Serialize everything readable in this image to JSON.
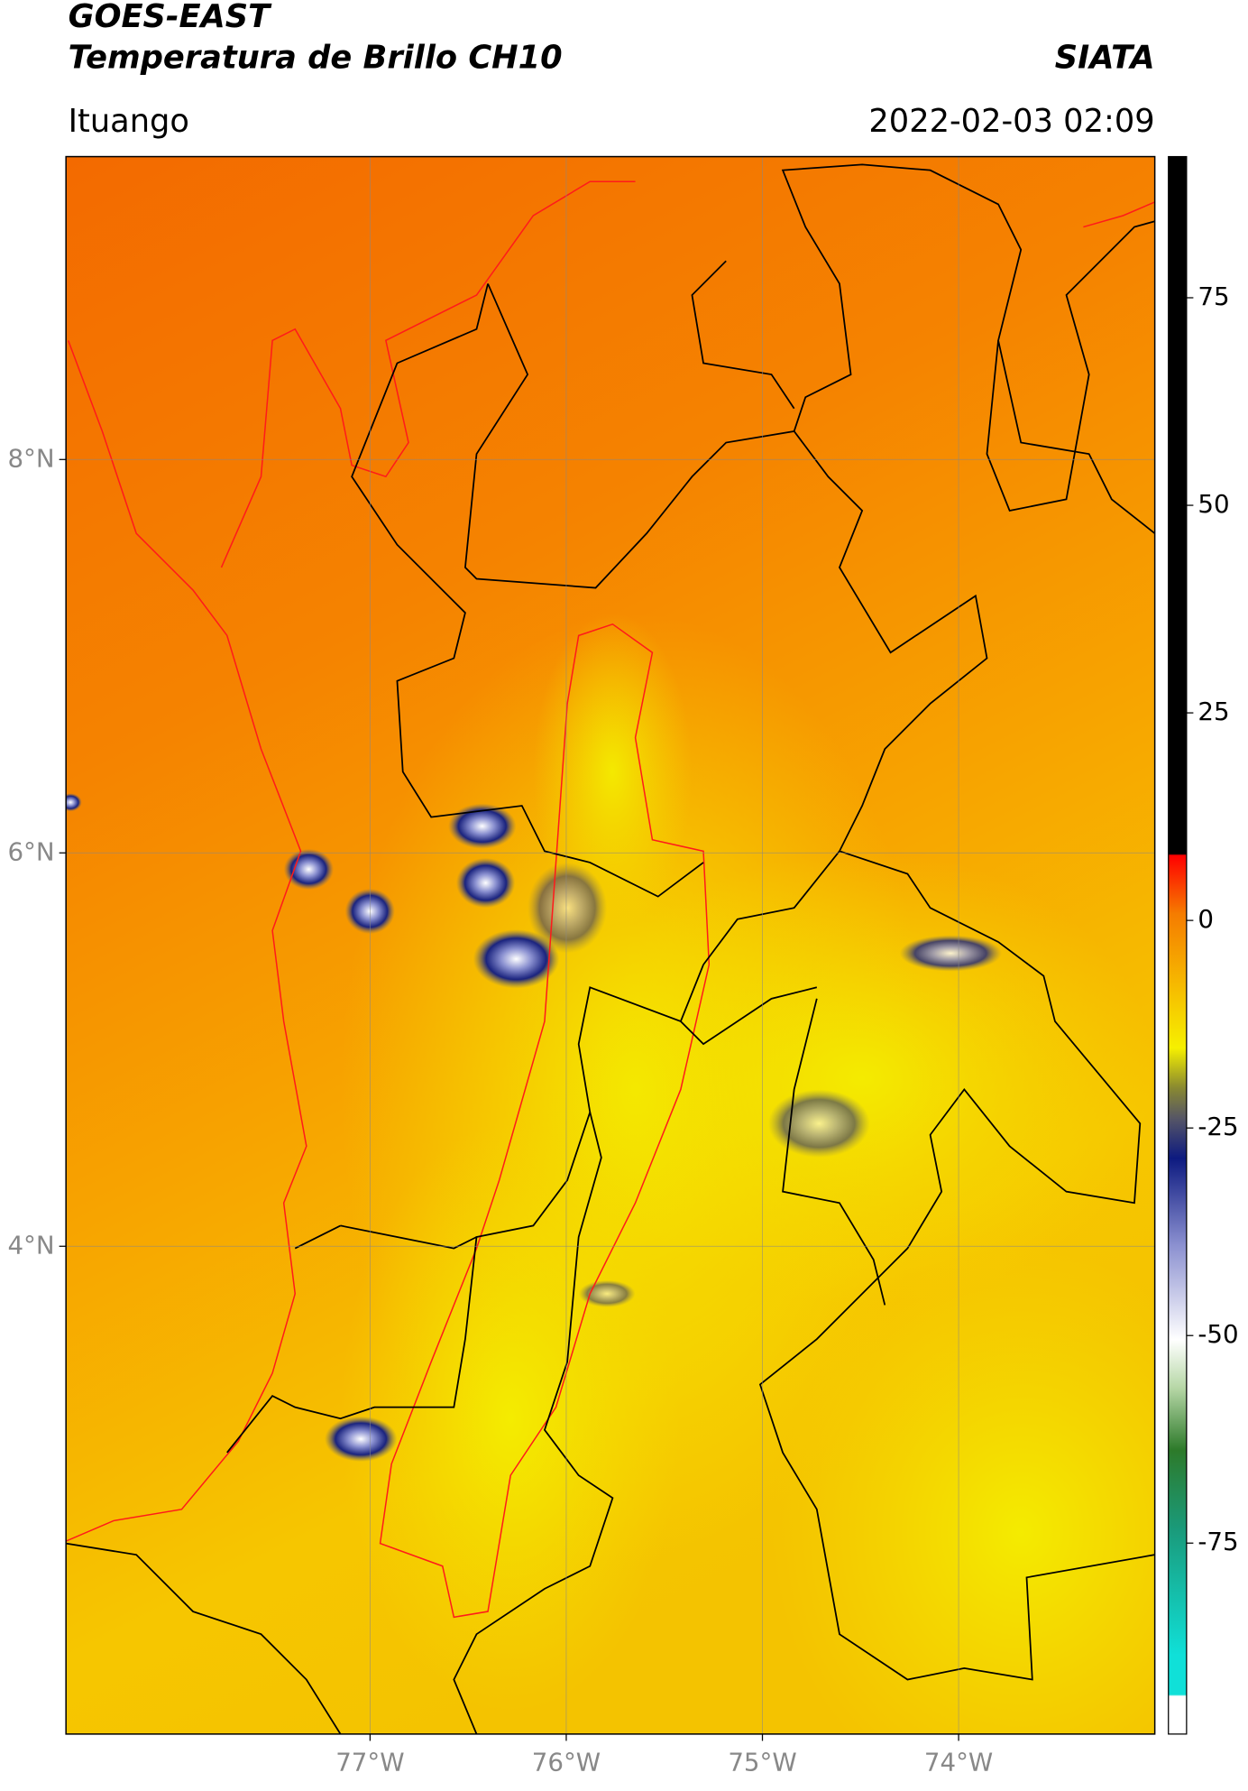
{
  "header": {
    "satellite": "GOES-EAST",
    "product": "Temperatura de Brillo CH10",
    "source": "SIATA",
    "location": "Ituango",
    "datetime": "2022-02-03 02:09"
  },
  "map": {
    "xlim": [
      -78.55,
      -73.0
    ],
    "ylim": [
      1.52,
      9.54
    ],
    "xticks": [
      {
        "value": -77,
        "label": "77°W"
      },
      {
        "value": -76,
        "label": "76°W"
      },
      {
        "value": -75,
        "label": "75°W"
      },
      {
        "value": -74,
        "label": "74°W"
      }
    ],
    "yticks": [
      {
        "value": 8,
        "label": "8°N"
      },
      {
        "value": 6,
        "label": "6°N"
      },
      {
        "value": 4,
        "label": "4°N"
      }
    ],
    "grid": true
  },
  "colorbar": {
    "lim": [
      -98,
      92
    ],
    "ticks": [
      75,
      50,
      25,
      0,
      -25,
      -50,
      -75
    ]
  }
}
